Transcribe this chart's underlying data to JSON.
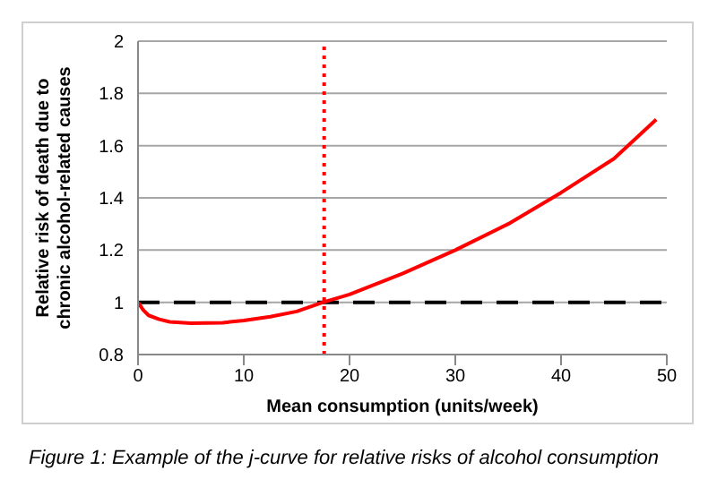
{
  "chart_data": {
    "type": "line",
    "xlabel": "Mean consumption (units/week)",
    "ylabel": "Relative risk of death due to chronic alcohol-related causes",
    "annotations": [
      "Figure 1: Example of the j-curve for relative risks of alcohol consumption"
    ],
    "series": [
      {
        "color": "#ff0000",
        "x": [
          0,
          0.5,
          1,
          2,
          3,
          5,
          8,
          10,
          12.5,
          15,
          17.5,
          20,
          25,
          30,
          35,
          40,
          45,
          49
        ],
        "values": [
          1.0,
          0.97,
          0.95,
          0.935,
          0.925,
          0.92,
          0.922,
          0.93,
          0.945,
          0.965,
          1.0,
          1.03,
          1.11,
          1.2,
          1.3,
          1.42,
          1.55,
          1.7
        ]
      }
    ],
    "xlim": [
      0,
      50
    ],
    "xticks": [
      0,
      10,
      20,
      30,
      40,
      50
    ],
    "ylim": [
      0.8,
      2
    ],
    "yticks": [
      0.8,
      1,
      1.2,
      1.4,
      1.6,
      1.8,
      2
    ],
    "grid": "y",
    "marker": "none",
    "line_style": "solid",
    "legend": false,
    "ref_lines": [
      {
        "axis": "y",
        "value": 1,
        "color": "#000000",
        "line_style": "dashed"
      },
      {
        "axis": "x",
        "value": 17.6,
        "color": "#ff0000",
        "line_style": "dotted"
      }
    ]
  }
}
